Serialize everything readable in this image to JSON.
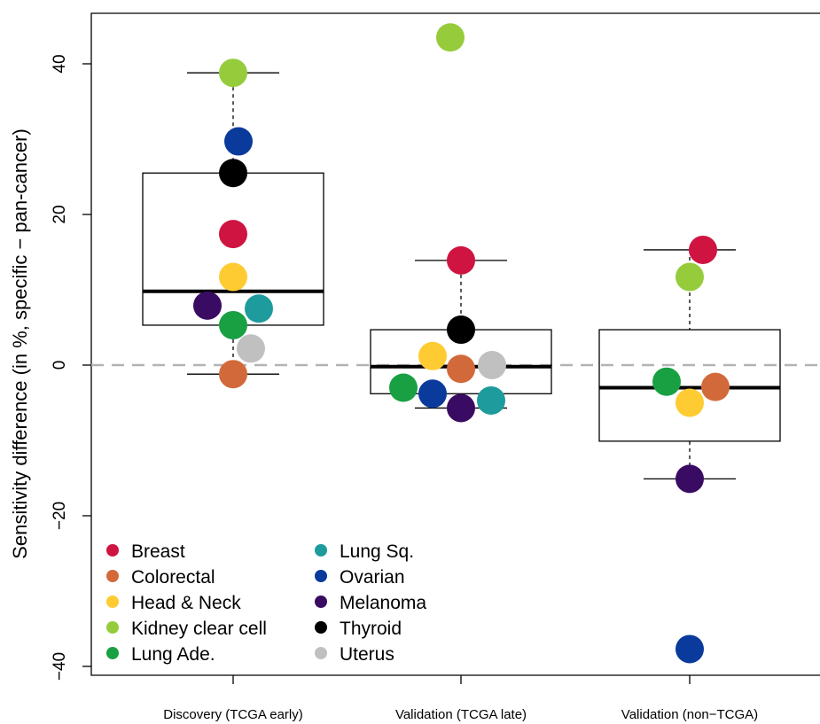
{
  "chart_data": {
    "type": "box",
    "ylabel": "Sensitivity difference (in %, specific − pan-cancer)",
    "xlabel": "",
    "ylim": [
      -43,
      47
    ],
    "yticks": [
      -40,
      -20,
      0,
      20,
      40
    ],
    "reference_line": 0,
    "grid": false,
    "legend_position": "bottom-left",
    "categories": [
      "Discovery (TCGA early)",
      "Validation (TCGA late)",
      "Validation (non−TCGA)"
    ],
    "boxes": [
      {
        "whisker_low": -1.2,
        "q1": 5.3,
        "median": 9.8,
        "q3": 25.5,
        "whisker_high": 38.8
      },
      {
        "whisker_low": -5.7,
        "q1": -3.8,
        "median": -0.2,
        "q3": 4.7,
        "whisker_high": 13.9
      },
      {
        "whisker_low": -15.1,
        "q1": -10.1,
        "median": -3.0,
        "q3": 4.7,
        "whisker_high": 15.3
      }
    ],
    "series": [
      {
        "name": "Breast",
        "color": "#CF1441",
        "values": [
          17.4,
          13.9,
          15.3
        ]
      },
      {
        "name": "Colorectal",
        "color": "#D2693A",
        "values": [
          -1.2,
          -0.5,
          -2.9
        ]
      },
      {
        "name": "Head & Neck",
        "color": "#FFCB32",
        "values": [
          11.7,
          1.2,
          -5.0
        ]
      },
      {
        "name": "Kidney clear cell",
        "color": "#96CC3C",
        "values": [
          38.8,
          43.5,
          11.7
        ]
      },
      {
        "name": "Lung Ade.",
        "color": "#18A043",
        "values": [
          5.3,
          -3.0,
          -2.2
        ]
      },
      {
        "name": "Lung Sq.",
        "color": "#1E9B9C",
        "values": [
          7.5,
          -4.7,
          null
        ]
      },
      {
        "name": "Ovarian",
        "color": "#0A3A9C",
        "values": [
          29.7,
          -3.8,
          -37.7
        ]
      },
      {
        "name": "Melanoma",
        "color": "#3A0B62",
        "values": [
          7.9,
          -5.7,
          -15.1
        ]
      },
      {
        "name": "Thyroid",
        "color": "#000000",
        "values": [
          25.5,
          4.7,
          null
        ]
      },
      {
        "name": "Uterus",
        "color": "#C0C0C0",
        "values": [
          2.2,
          0.0,
          null
        ]
      }
    ]
  }
}
